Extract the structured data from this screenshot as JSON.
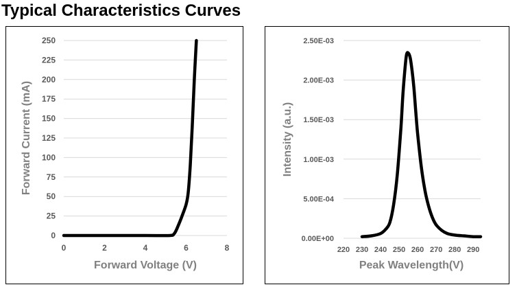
{
  "page_title": "Typical Characteristics Curves",
  "chart_data": [
    {
      "type": "line",
      "name": "iv-curve",
      "title": "",
      "xlabel": "Forward Voltage (V)",
      "ylabel": "Forward Current (mA)",
      "xlim": [
        0,
        8
      ],
      "ylim": [
        0,
        250
      ],
      "xticks": [
        "0",
        "2",
        "4",
        "6",
        "8"
      ],
      "xtick_values": [
        0,
        2,
        4,
        6,
        8
      ],
      "yticks": [
        "0",
        "25",
        "50",
        "75",
        "100",
        "125",
        "150",
        "175",
        "200",
        "225",
        "250"
      ],
      "ytick_values": [
        0,
        25,
        50,
        75,
        100,
        125,
        150,
        175,
        200,
        225,
        250
      ],
      "grid": "horizontal",
      "series": [
        {
          "name": "Forward Current",
          "color": "#000000",
          "x": [
            0,
            2,
            4,
            5.2,
            5.4,
            5.5,
            5.6,
            5.8,
            6.0,
            6.1,
            6.2,
            6.3,
            6.4,
            6.5
          ],
          "y": [
            0,
            0,
            0,
            0,
            2,
            6,
            12,
            25,
            40,
            55,
            90,
            140,
            200,
            250
          ]
        }
      ]
    },
    {
      "type": "line",
      "name": "spectrum",
      "title": "",
      "xlabel": "Peak Wavelength(V)",
      "ylabel": "Intensity  (a.u.)",
      "xlim": [
        220,
        294
      ],
      "ylim": [
        0,
        0.0025
      ],
      "xticks": [
        "220",
        "230",
        "240",
        "250",
        "260",
        "270",
        "280",
        "290"
      ],
      "xtick_values": [
        220,
        230,
        240,
        250,
        260,
        270,
        280,
        290
      ],
      "yticks": [
        "0.00E+00",
        "5.00E-04",
        "1.00E-03",
        "1.50E-03",
        "2.00E-03",
        "2.50E-03"
      ],
      "ytick_values": [
        0,
        0.0005,
        0.001,
        0.0015,
        0.002,
        0.0025
      ],
      "grid": "horizontal",
      "series": [
        {
          "name": "Intensity",
          "color": "#000000",
          "x": [
            230,
            235,
            240,
            243,
            245,
            247,
            249,
            251,
            252,
            253,
            254,
            255,
            256,
            257,
            258,
            259,
            260,
            262,
            264,
            266,
            268,
            270,
            273,
            276,
            280,
            285,
            290,
            294
          ],
          "y": [
            2e-05,
            3e-05,
            6e-05,
            0.00012,
            0.0002,
            0.00042,
            0.0008,
            0.0014,
            0.0018,
            0.0021,
            0.00232,
            0.00234,
            0.00228,
            0.00212,
            0.0019,
            0.0016,
            0.00132,
            0.0009,
            0.0006,
            0.0004,
            0.00026,
            0.00017,
            0.0001,
            6e-05,
            4e-05,
            3e-05,
            2e-05,
            2e-05
          ]
        }
      ]
    }
  ]
}
